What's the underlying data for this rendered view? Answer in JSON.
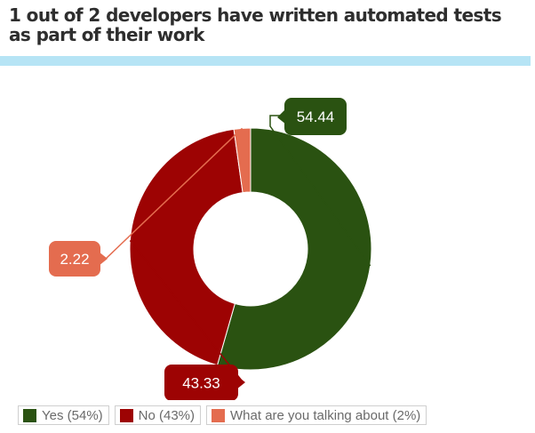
{
  "colors": {
    "accent_bar": "#b6e4f5",
    "yes": "#2a5211",
    "no": "#9d0303",
    "wtf": "#e46c4f"
  },
  "chart_data": {
    "type": "pie",
    "variant": "donut",
    "title": "1 out of 2 developers have written automated tests as part of their work",
    "title_lines": [
      "1 out of 2 developers have written automated tests",
      "as part of their work"
    ],
    "categories": [
      "Yes",
      "No",
      "What are you talking about"
    ],
    "values": [
      54.44,
      43.33,
      2.22
    ],
    "data_labels": [
      "54.44",
      "43.33",
      "2.22"
    ],
    "legend": [
      "Yes (54%)",
      "No (43%)",
      "What are you talking about (2%)"
    ],
    "legend_position": "bottom-left"
  }
}
